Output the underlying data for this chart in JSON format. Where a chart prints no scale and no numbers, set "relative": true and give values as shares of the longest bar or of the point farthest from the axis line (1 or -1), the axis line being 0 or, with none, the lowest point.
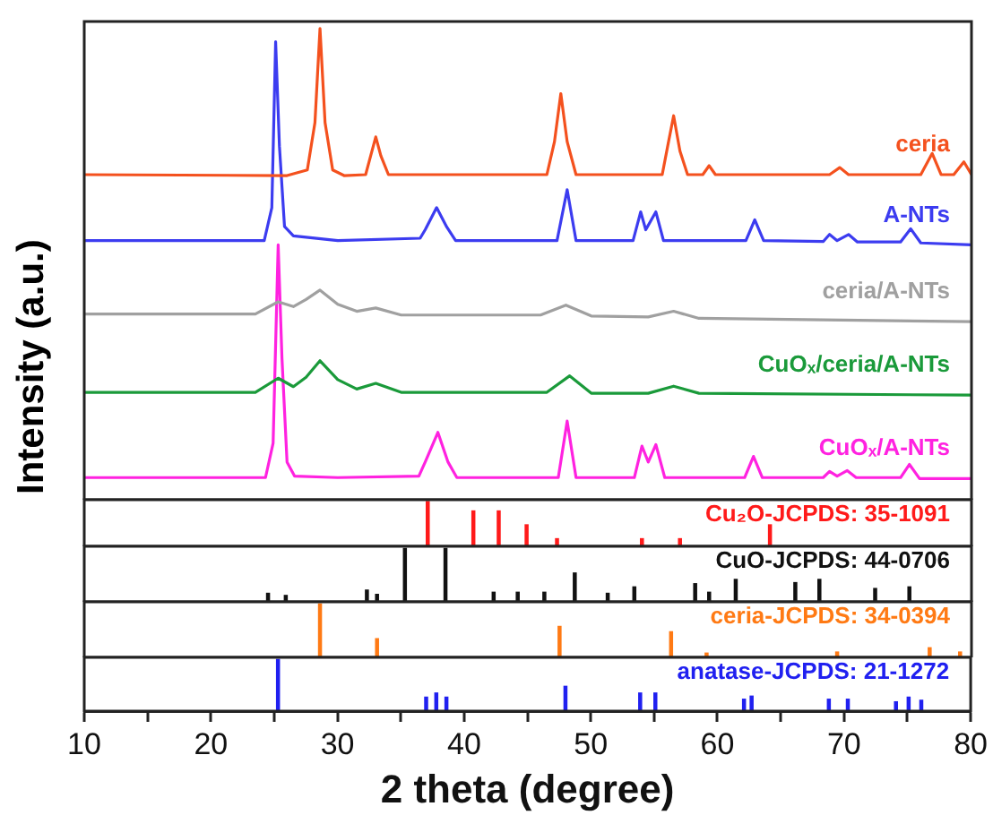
{
  "chart_data": [
    {
      "type": "line",
      "relative": true,
      "ylabel": "Intensity (a.u.)",
      "xlim": [
        10,
        80
      ],
      "tick_labels": false,
      "marker": "none",
      "series": [
        {
          "name": "ceria",
          "color": "#f4511e",
          "x": [
            10,
            26,
            27.6,
            28.2,
            28.6,
            29.0,
            29.6,
            30.5,
            32.2,
            32.6,
            33.0,
            33.4,
            34,
            46.5,
            47.1,
            47.6,
            48.1,
            48.8,
            55.6,
            56.1,
            56.5,
            57.0,
            57.6,
            58.8,
            59.3,
            59.8,
            68.8,
            69.6,
            70.3,
            76.0,
            76.9,
            77.6,
            78.6,
            79.4,
            80
          ],
          "values": [
            0.69,
            0.688,
            0.7,
            0.8,
            1.0,
            0.8,
            0.7,
            0.688,
            0.69,
            0.73,
            0.77,
            0.73,
            0.69,
            0.69,
            0.76,
            0.862,
            0.76,
            0.69,
            0.69,
            0.76,
            0.815,
            0.74,
            0.69,
            0.69,
            0.709,
            0.69,
            0.69,
            0.705,
            0.69,
            0.69,
            0.735,
            0.69,
            0.69,
            0.717,
            0.69
          ]
        },
        {
          "name": "A-NTs",
          "color": "#3c3cf0",
          "x": [
            10,
            24.2,
            24.8,
            25.1,
            25.4,
            25.8,
            26.5,
            30,
            36.5,
            36.9,
            37.8,
            38.6,
            39.3,
            47.3,
            48.1,
            48.8,
            53.3,
            53.9,
            54.3,
            55.1,
            55.7,
            62.2,
            62.9,
            63.6,
            68.3,
            68.8,
            69.4,
            70.3,
            71,
            74.4,
            75.2,
            76,
            80
          ],
          "values": [
            0.55,
            0.55,
            0.62,
            0.972,
            0.75,
            0.58,
            0.56,
            0.55,
            0.555,
            0.573,
            0.62,
            0.579,
            0.55,
            0.55,
            0.658,
            0.55,
            0.55,
            0.611,
            0.573,
            0.611,
            0.55,
            0.55,
            0.594,
            0.55,
            0.548,
            0.563,
            0.55,
            0.563,
            0.547,
            0.547,
            0.575,
            0.545,
            0.541
          ]
        },
        {
          "name": "ceria/A-NTs",
          "color": "#a0a0a0",
          "x": [
            10,
            23.5,
            25.3,
            26.5,
            27.5,
            28.6,
            30,
            31.5,
            33,
            35,
            46,
            48,
            50,
            54.5,
            56.5,
            58.5,
            80
          ],
          "values": [
            0.394,
            0.394,
            0.42,
            0.41,
            0.425,
            0.445,
            0.415,
            0.4,
            0.407,
            0.392,
            0.392,
            0.413,
            0.39,
            0.388,
            0.4,
            0.385,
            0.378
          ]
        },
        {
          "name": "CuOₓ/ceria/A-NTs",
          "color": "#1a9a3a",
          "x": [
            10,
            23.5,
            25.3,
            26.5,
            27.5,
            28.6,
            30,
            31.5,
            33,
            35,
            46.5,
            48.3,
            50,
            54.5,
            56.5,
            58.5,
            80
          ],
          "values": [
            0.228,
            0.228,
            0.258,
            0.24,
            0.26,
            0.295,
            0.255,
            0.235,
            0.247,
            0.228,
            0.228,
            0.263,
            0.226,
            0.226,
            0.241,
            0.226,
            0.222
          ]
        },
        {
          "name": "CuOₓ/A-NTs",
          "color": "#ff22e0",
          "x": [
            10,
            24.3,
            24.9,
            25.3,
            25.6,
            26,
            26.6,
            30,
            36.4,
            36.9,
            37.9,
            38.7,
            39.4,
            47.4,
            48.1,
            48.8,
            53.4,
            54.0,
            54.5,
            55.1,
            55.8,
            62.1,
            62.8,
            63.5,
            68.3,
            68.8,
            69.4,
            70.2,
            70.9,
            74.4,
            75.1,
            75.9,
            80
          ],
          "values": [
            0.047,
            0.047,
            0.12,
            0.541,
            0.3,
            0.08,
            0.05,
            0.047,
            0.05,
            0.08,
            0.143,
            0.08,
            0.047,
            0.047,
            0.167,
            0.047,
            0.047,
            0.114,
            0.08,
            0.117,
            0.047,
            0.047,
            0.092,
            0.047,
            0.047,
            0.06,
            0.05,
            0.062,
            0.047,
            0.047,
            0.075,
            0.045,
            0.045
          ]
        }
      ]
    },
    {
      "type": "bar",
      "relative": true,
      "xlim": [
        10,
        80
      ],
      "tick_labels": false,
      "series": [
        {
          "name": "Cu₂O-JCPDS: 35-1091",
          "color": "#ff1a1a",
          "x": [
            37.1,
            40.7,
            42.7,
            44.9,
            47.3,
            54.0,
            57.0,
            64.1
          ],
          "values": [
            1.0,
            0.79,
            0.79,
            0.48,
            0.17,
            0.17,
            0.17,
            0.48
          ]
        }
      ]
    },
    {
      "type": "bar",
      "relative": true,
      "xlim": [
        10,
        80
      ],
      "tick_labels": false,
      "series": [
        {
          "name": "CuO-JCPDS: 44-0706",
          "color": "#111111",
          "x": [
            24.5,
            25.9,
            32.3,
            33.1,
            35.3,
            38.5,
            42.3,
            44.2,
            46.3,
            48.7,
            51.3,
            53.4,
            58.2,
            59.3,
            61.4,
            66.1,
            68.0,
            72.4,
            75.1
          ],
          "values": [
            0.16,
            0.12,
            0.22,
            0.14,
            1,
            1,
            0.18,
            0.18,
            0.18,
            0.54,
            0.16,
            0.28,
            0.34,
            0.18,
            0.42,
            0.36,
            0.42,
            0.25,
            0.28
          ]
        }
      ]
    },
    {
      "type": "bar",
      "relative": true,
      "xlim": [
        10,
        80
      ],
      "tick_labels": false,
      "series": [
        {
          "name": "ceria-JCPDS: 34-0394",
          "color": "#ff7a14",
          "x": [
            28.6,
            33.1,
            47.5,
            56.3,
            59.1,
            69.4,
            76.7,
            79.1
          ],
          "values": [
            1,
            0.35,
            0.58,
            0.48,
            0.08,
            0.1,
            0.18,
            0.1
          ]
        }
      ]
    },
    {
      "type": "bar",
      "relative": true,
      "xlim": [
        10,
        80
      ],
      "xlabel": "2 theta (degree)",
      "tick_labels": "x",
      "xticks": [
        10,
        {
          "value": 15,
          "label": null
        },
        20,
        {
          "value": 25,
          "label": null
        },
        30,
        {
          "value": 35,
          "label": null
        },
        40,
        {
          "value": 45,
          "label": null
        },
        50,
        {
          "value": 55,
          "label": null
        },
        60,
        {
          "value": 65,
          "label": null
        },
        70,
        {
          "value": 75,
          "label": null
        },
        80
      ],
      "series": [
        {
          "name": "anatase-JCPDS: 21-1272",
          "color": "#2020f0",
          "x": [
            25.3,
            37.0,
            37.8,
            38.6,
            48.0,
            53.9,
            55.1,
            62.1,
            62.7,
            68.8,
            70.3,
            74.1,
            75.1,
            76.1
          ],
          "values": [
            1,
            0.27,
            0.35,
            0.27,
            0.48,
            0.35,
            0.35,
            0.23,
            0.29,
            0.23,
            0.23,
            0.18,
            0.27,
            0.21
          ]
        }
      ]
    }
  ]
}
